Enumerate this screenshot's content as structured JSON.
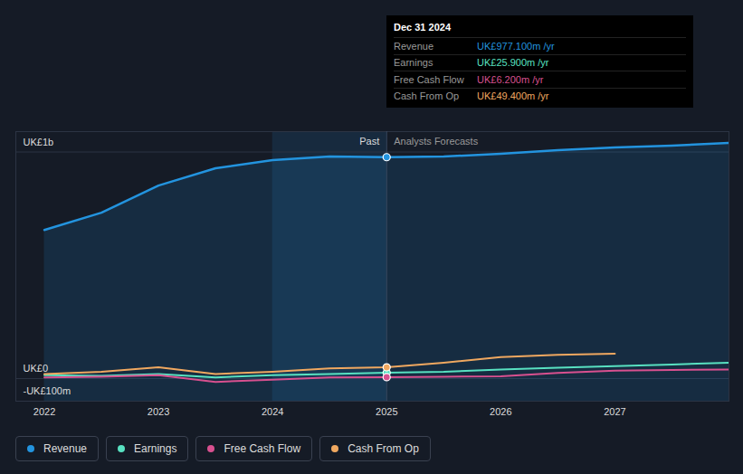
{
  "chart_data": {
    "type": "line",
    "x": [
      2022,
      2022.5,
      2023,
      2023.5,
      2024,
      2024.5,
      2025,
      2025.5,
      2026,
      2026.5,
      2027,
      2027.5,
      2028
    ],
    "series": [
      {
        "name": "Revenue",
        "color": "#2394df",
        "type": "area",
        "values": [
          656,
          732,
          852,
          928,
          964,
          980,
          977.1,
          980,
          992,
          1008,
          1020,
          1028,
          1040
        ]
      },
      {
        "name": "Earnings",
        "color": "#58e1c1",
        "values": [
          15,
          12,
          20,
          5,
          15,
          20,
          25.9,
          30,
          40,
          48,
          55,
          62,
          70
        ]
      },
      {
        "name": "Free Cash Flow",
        "color": "#d8508f",
        "values": [
          5,
          8,
          15,
          -15,
          -5,
          5,
          6.2,
          8,
          10,
          25,
          35,
          38,
          40
        ]
      },
      {
        "name": "Cash From Op",
        "color": "#f0a860",
        "values": [
          20,
          30,
          50,
          20,
          30,
          45,
          49.4,
          70,
          95,
          105,
          110,
          null,
          null
        ]
      }
    ],
    "xlim": [
      2021.75,
      2028
    ],
    "xticks": [
      2022,
      2023,
      2024,
      2025,
      2026,
      2027
    ],
    "ylim": [
      -100,
      1090
    ],
    "yticks": [
      {
        "value": -100,
        "label": "-UK£100m"
      },
      {
        "value": 0,
        "label": "UK£0"
      },
      {
        "value": 1000,
        "label": "UK£1b"
      }
    ],
    "grid": true,
    "highlight_range": [
      2024,
      2025
    ],
    "annotations": [
      "Past",
      "Analysts Forecasts"
    ],
    "tooltip": {
      "title": "Dec 31 2024",
      "rows": [
        {
          "label": "Revenue",
          "value": "UK£977.100m /yr"
        },
        {
          "label": "Earnings",
          "value": "UK£25.900m /yr"
        },
        {
          "label": "Free Cash Flow",
          "value": "UK£6.200m /yr"
        },
        {
          "label": "Cash From Op",
          "value": "UK£49.400m /yr"
        }
      ]
    }
  }
}
